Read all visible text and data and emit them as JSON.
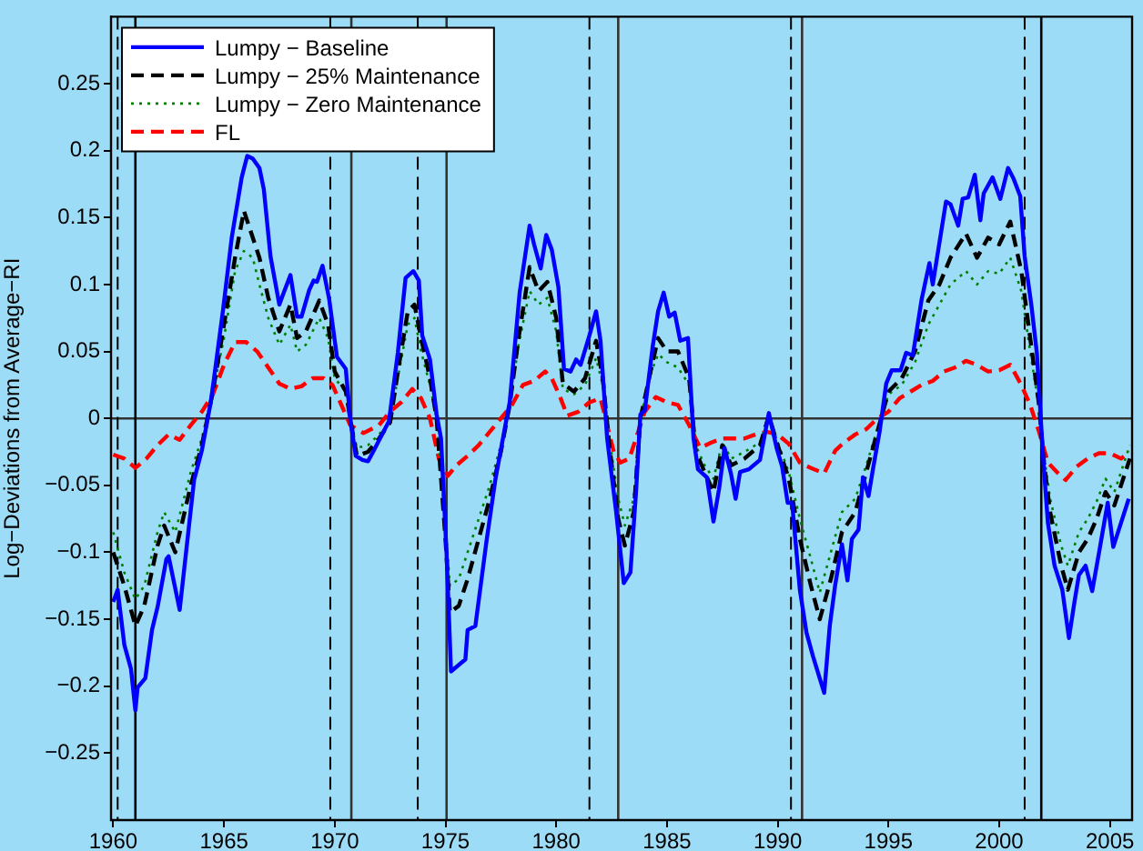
{
  "chart_data": {
    "type": "line",
    "ylabel": "Log−Deviations from Average−RI",
    "xlim": [
      1959.9,
      2006
    ],
    "ylim": [
      -0.3,
      0.3
    ],
    "xticks": [
      1960,
      1965,
      1970,
      1975,
      1980,
      1985,
      1990,
      1995,
      2000,
      2005
    ],
    "yticks": [
      {
        "value": -0.25,
        "label": "−0.25"
      },
      {
        "value": -0.2,
        "label": "−0.2"
      },
      {
        "value": -0.15,
        "label": "−0.15"
      },
      {
        "value": -0.1,
        "label": "−0.1"
      },
      {
        "value": -0.05,
        "label": "−0.05"
      },
      0,
      0.05,
      0.1,
      0.15,
      0.2,
      0.25
    ],
    "grid": false,
    "legend": "top left",
    "marker": "none",
    "ref_lines": [
      {
        "axis": "y",
        "value": 0,
        "color": "#333333",
        "line_style": "solid"
      },
      {
        "axis": "x",
        "value": 1960.2,
        "color": "#000000",
        "line_style": "dashed"
      },
      {
        "axis": "x",
        "value": 1961.0,
        "color": "#000000",
        "line_style": "solid"
      },
      {
        "axis": "x",
        "value": 1969.8,
        "color": "#000000",
        "line_style": "dashed"
      },
      {
        "axis": "x",
        "value": 1970.75,
        "color": "#333333",
        "line_style": "solid"
      },
      {
        "axis": "x",
        "value": 1973.75,
        "color": "#000000",
        "line_style": "dashed"
      },
      {
        "axis": "x",
        "value": 1975.05,
        "color": "#333333",
        "line_style": "solid"
      },
      {
        "axis": "x",
        "value": 1981.5,
        "color": "#000000",
        "line_style": "dashed"
      },
      {
        "axis": "x",
        "value": 1982.8,
        "color": "#333333",
        "line_style": "solid"
      },
      {
        "axis": "x",
        "value": 1990.6,
        "color": "#000000",
        "line_style": "dashed"
      },
      {
        "axis": "x",
        "value": 1991.1,
        "color": "#333333",
        "line_style": "solid"
      },
      {
        "axis": "x",
        "value": 2001.15,
        "color": "#000000",
        "line_style": "dashed"
      },
      {
        "axis": "x",
        "value": 2001.9,
        "color": "#000000",
        "line_style": "solid"
      }
    ],
    "series": [
      {
        "name": "Lumpy − Baseline",
        "color": "#0000ff",
        "line_style": "solid",
        "x": [
          1960.0,
          1960.2,
          1960.5,
          1960.8,
          1961.0,
          1961.1,
          1961.45,
          1961.75,
          1962.0,
          1962.4,
          1962.5,
          1963.0,
          1963.65,
          1964.0,
          1964.4,
          1964.55,
          1964.95,
          1965.35,
          1965.8,
          1966.05,
          1966.3,
          1966.6,
          1966.8,
          1967.1,
          1967.5,
          1967.7,
          1968.0,
          1968.3,
          1968.5,
          1968.85,
          1969.05,
          1969.2,
          1969.45,
          1969.75,
          1970.1,
          1970.5,
          1970.7,
          1970.95,
          1971.25,
          1971.5,
          1971.7,
          1972.45,
          1972.85,
          1973.2,
          1973.55,
          1973.8,
          1973.95,
          1974.3,
          1974.6,
          1974.8,
          1975.05,
          1975.25,
          1975.9,
          1976.0,
          1976.35,
          1976.85,
          1977.25,
          1977.65,
          1977.9,
          1978.35,
          1978.8,
          1979.0,
          1979.3,
          1979.55,
          1979.8,
          1980.1,
          1980.35,
          1980.65,
          1980.9,
          1981.1,
          1981.5,
          1981.8,
          1982.0,
          1982.3,
          1982.7,
          1983.05,
          1983.35,
          1983.6,
          1983.8,
          1984.0,
          1984.35,
          1984.6,
          1984.85,
          1985.1,
          1985.35,
          1985.6,
          1985.95,
          1986.2,
          1986.4,
          1986.6,
          1986.8,
          1987.1,
          1987.35,
          1987.6,
          1987.9,
          1988.1,
          1988.3,
          1988.7,
          1989.2,
          1989.6,
          1989.95,
          1990.2,
          1990.45,
          1990.65,
          1991.0,
          1991.3,
          1991.6,
          1992.1,
          1992.35,
          1992.6,
          1992.9,
          1993.15,
          1993.35,
          1993.65,
          1993.85,
          1994.1,
          1994.3,
          1994.6,
          1994.9,
          1995.15,
          1995.55,
          1995.8,
          1996.1,
          1996.5,
          1996.85,
          1997.0,
          1997.6,
          1997.8,
          1998.15,
          1998.35,
          1998.6,
          1998.9,
          1999.15,
          1999.3,
          1999.7,
          2000.05,
          2000.4,
          2000.65,
          2000.95,
          2001.15,
          2001.45,
          2001.7,
          2001.9,
          2002.0,
          2002.2,
          2002.5,
          2002.85,
          2003.15,
          2003.4,
          2003.6,
          2003.9,
          2004.2,
          2004.5,
          2004.9,
          2005.15,
          2005.5,
          2005.85
        ],
        "values": [
          -0.137,
          -0.128,
          -0.169,
          -0.187,
          -0.218,
          -0.201,
          -0.194,
          -0.158,
          -0.141,
          -0.105,
          -0.103,
          -0.143,
          -0.046,
          -0.024,
          0.012,
          0.03,
          0.08,
          0.135,
          0.18,
          0.196,
          0.194,
          0.187,
          0.171,
          0.121,
          0.085,
          0.094,
          0.107,
          0.076,
          0.076,
          0.096,
          0.103,
          0.102,
          0.114,
          0.089,
          0.046,
          0.037,
          -0.001,
          -0.028,
          -0.031,
          -0.032,
          -0.026,
          -0.002,
          0.049,
          0.105,
          0.11,
          0.103,
          0.062,
          0.044,
          0.003,
          -0.015,
          -0.101,
          -0.189,
          -0.18,
          -0.158,
          -0.155,
          -0.092,
          -0.046,
          -0.01,
          0.012,
          0.094,
          0.144,
          0.13,
          0.112,
          0.137,
          0.126,
          0.098,
          0.037,
          0.035,
          0.044,
          0.04,
          0.062,
          0.08,
          0.058,
          -0.015,
          -0.069,
          -0.123,
          -0.115,
          -0.056,
          0.003,
          0.006,
          0.053,
          0.08,
          0.094,
          0.076,
          0.079,
          0.058,
          0.06,
          -0.015,
          -0.038,
          -0.041,
          -0.044,
          -0.077,
          -0.053,
          -0.022,
          -0.042,
          -0.06,
          -0.04,
          -0.038,
          -0.031,
          0.004,
          -0.022,
          -0.036,
          -0.063,
          -0.063,
          -0.128,
          -0.16,
          -0.178,
          -0.205,
          -0.155,
          -0.124,
          -0.094,
          -0.121,
          -0.09,
          -0.083,
          -0.044,
          -0.058,
          -0.038,
          -0.01,
          0.026,
          0.036,
          0.036,
          0.049,
          0.047,
          0.089,
          0.116,
          0.1,
          0.162,
          0.16,
          0.144,
          0.164,
          0.165,
          0.182,
          0.148,
          0.168,
          0.18,
          0.164,
          0.187,
          0.179,
          0.166,
          0.121,
          0.085,
          0.049,
          -0.006,
          -0.033,
          -0.078,
          -0.11,
          -0.128,
          -0.164,
          -0.137,
          -0.117,
          -0.11,
          -0.129,
          -0.101,
          -0.063,
          -0.096,
          -0.078,
          -0.06
        ]
      },
      {
        "name": "Lumpy − 25% Maintenance",
        "color": "#000000",
        "line_style": "dashed",
        "x": [
          1960.0,
          1960.5,
          1961.0,
          1961.4,
          1962.0,
          1962.3,
          1962.8,
          1963.5,
          1964.0,
          1964.5,
          1965.0,
          1965.5,
          1965.9,
          1966.2,
          1966.6,
          1967.0,
          1967.5,
          1968.0,
          1968.3,
          1968.7,
          1969.3,
          1969.7,
          1970.0,
          1970.5,
          1970.75,
          1971.0,
          1971.5,
          1972.0,
          1972.5,
          1972.9,
          1973.3,
          1973.6,
          1973.9,
          1974.3,
          1974.6,
          1975.0,
          1975.2,
          1975.6,
          1976.0,
          1976.5,
          1977.0,
          1977.5,
          1977.9,
          1978.3,
          1978.8,
          1979.2,
          1979.6,
          1980.0,
          1980.3,
          1980.8,
          1981.3,
          1981.8,
          1982.1,
          1982.4,
          1982.8,
          1983.1,
          1983.5,
          1983.8,
          1984.3,
          1984.6,
          1985.0,
          1985.5,
          1986.0,
          1986.3,
          1986.7,
          1987.1,
          1987.5,
          1987.9,
          1988.5,
          1989.2,
          1989.6,
          1990.0,
          1990.5,
          1991.0,
          1991.5,
          1991.9,
          1992.4,
          1992.9,
          1993.5,
          1994.0,
          1994.5,
          1995.0,
          1995.6,
          1996.2,
          1996.8,
          1997.3,
          1997.8,
          1998.5,
          1999.0,
          1999.5,
          2000.0,
          2000.5,
          2001.0,
          2001.4,
          2001.8,
          2002.0,
          2002.3,
          2002.8,
          2003.1,
          2003.6,
          2004.0,
          2004.4,
          2004.8,
          2005.2,
          2005.9
        ],
        "values": [
          -0.1,
          -0.125,
          -0.155,
          -0.14,
          -0.095,
          -0.08,
          -0.1,
          -0.05,
          -0.02,
          0.02,
          0.07,
          0.12,
          0.155,
          0.14,
          0.12,
          0.09,
          0.065,
          0.085,
          0.06,
          0.065,
          0.088,
          0.07,
          0.035,
          0.02,
          -0.005,
          -0.028,
          -0.025,
          -0.015,
          -0.003,
          0.04,
          0.08,
          0.085,
          0.06,
          0.03,
          0.0,
          -0.09,
          -0.145,
          -0.14,
          -0.12,
          -0.09,
          -0.06,
          -0.025,
          0.01,
          0.06,
          0.113,
          0.095,
          0.102,
          0.075,
          0.026,
          0.02,
          0.03,
          0.058,
          0.03,
          -0.02,
          -0.075,
          -0.095,
          -0.07,
          0.0,
          0.038,
          0.06,
          0.05,
          0.05,
          0.03,
          -0.025,
          -0.04,
          -0.055,
          -0.02,
          -0.035,
          -0.03,
          -0.02,
          0.002,
          -0.02,
          -0.045,
          -0.09,
          -0.125,
          -0.15,
          -0.12,
          -0.085,
          -0.07,
          -0.04,
          -0.01,
          0.02,
          0.03,
          0.05,
          0.088,
          0.1,
          0.12,
          0.138,
          0.12,
          0.135,
          0.13,
          0.147,
          0.11,
          0.06,
          0.01,
          -0.03,
          -0.07,
          -0.11,
          -0.128,
          -0.1,
          -0.09,
          -0.075,
          -0.055,
          -0.065,
          -0.03
        ]
      },
      {
        "name": "Lumpy − Zero Maintenance",
        "color": "#008000",
        "line_style": "dotted",
        "x": [
          1960.0,
          1960.5,
          1961.0,
          1961.4,
          1962.0,
          1962.3,
          1962.8,
          1963.5,
          1964.0,
          1964.5,
          1965.0,
          1965.5,
          1965.9,
          1966.3,
          1966.6,
          1967.0,
          1967.5,
          1968.0,
          1968.3,
          1968.7,
          1969.3,
          1969.7,
          1970.0,
          1970.5,
          1970.75,
          1971.0,
          1971.5,
          1972.0,
          1972.5,
          1972.9,
          1973.3,
          1973.6,
          1973.9,
          1974.3,
          1974.6,
          1975.0,
          1975.2,
          1975.6,
          1976.0,
          1976.5,
          1977.0,
          1977.5,
          1977.9,
          1978.3,
          1978.8,
          1979.2,
          1979.6,
          1980.0,
          1980.3,
          1980.8,
          1981.3,
          1981.8,
          1982.1,
          1982.4,
          1982.8,
          1983.1,
          1983.5,
          1983.8,
          1984.3,
          1984.6,
          1985.0,
          1985.5,
          1986.0,
          1986.3,
          1986.7,
          1987.1,
          1987.5,
          1987.9,
          1988.5,
          1989.2,
          1989.6,
          1990.0,
          1990.5,
          1991.0,
          1991.5,
          1991.9,
          1992.4,
          1992.9,
          1993.5,
          1994.0,
          1994.5,
          1995.0,
          1995.6,
          1996.2,
          1996.8,
          1997.3,
          1997.8,
          1998.5,
          1999.0,
          1999.5,
          2000.0,
          2000.5,
          2001.0,
          2001.4,
          2001.8,
          2002.0,
          2002.3,
          2002.8,
          2003.1,
          2003.6,
          2004.0,
          2004.4,
          2004.8,
          2005.2,
          2005.9
        ],
        "values": [
          -0.085,
          -0.115,
          -0.135,
          -0.125,
          -0.085,
          -0.07,
          -0.085,
          -0.04,
          -0.015,
          0.02,
          0.06,
          0.11,
          0.125,
          0.12,
          0.1,
          0.075,
          0.055,
          0.07,
          0.05,
          0.055,
          0.075,
          0.06,
          0.03,
          0.02,
          -0.005,
          -0.022,
          -0.02,
          -0.012,
          -0.002,
          0.035,
          0.07,
          0.075,
          0.05,
          0.025,
          0.0,
          -0.08,
          -0.125,
          -0.12,
          -0.1,
          -0.075,
          -0.05,
          -0.02,
          0.01,
          0.055,
          0.095,
          0.085,
          0.09,
          0.065,
          0.022,
          0.018,
          0.025,
          0.045,
          0.025,
          -0.015,
          -0.06,
          -0.08,
          -0.06,
          0.0,
          0.035,
          0.048,
          0.042,
          0.038,
          0.025,
          -0.02,
          -0.035,
          -0.045,
          -0.018,
          -0.03,
          -0.025,
          -0.018,
          0.002,
          -0.018,
          -0.04,
          -0.075,
          -0.105,
          -0.13,
          -0.1,
          -0.07,
          -0.06,
          -0.035,
          -0.008,
          0.018,
          0.025,
          0.042,
          0.07,
          0.085,
          0.1,
          0.11,
          0.1,
          0.11,
          0.108,
          0.12,
          0.095,
          0.05,
          0.008,
          -0.025,
          -0.06,
          -0.095,
          -0.11,
          -0.085,
          -0.075,
          -0.062,
          -0.045,
          -0.055,
          -0.02
        ]
      },
      {
        "name": "FL",
        "color": "#ff0000",
        "line_style": "dashed",
        "x": [
          1960.0,
          1960.5,
          1961.0,
          1961.5,
          1962.0,
          1962.5,
          1963.0,
          1963.5,
          1964.0,
          1964.5,
          1965.0,
          1965.5,
          1966.0,
          1966.5,
          1967.0,
          1967.5,
          1968.0,
          1968.5,
          1969.0,
          1969.5,
          1969.9,
          1970.3,
          1970.7,
          1971.3,
          1972.0,
          1972.5,
          1973.0,
          1973.5,
          1973.9,
          1974.3,
          1974.7,
          1975.1,
          1975.5,
          1976.0,
          1976.5,
          1977.0,
          1977.5,
          1978.0,
          1978.5,
          1979.0,
          1979.5,
          1979.8,
          1980.2,
          1980.5,
          1981.0,
          1981.5,
          1982.0,
          1982.3,
          1982.6,
          1982.9,
          1983.3,
          1983.7,
          1984.0,
          1984.5,
          1985.0,
          1985.5,
          1986.0,
          1986.5,
          1987.0,
          1987.5,
          1988.0,
          1988.5,
          1989.0,
          1989.5,
          1990.0,
          1990.5,
          1991.0,
          1991.5,
          1992.1,
          1992.6,
          1993.0,
          1993.5,
          1994.0,
          1994.5,
          1995.0,
          1995.5,
          1996.0,
          1996.5,
          1997.0,
          1997.5,
          1998.0,
          1998.5,
          1999.0,
          1999.5,
          2000.0,
          2000.5,
          2001.0,
          2001.4,
          2001.8,
          2002.2,
          2002.6,
          2003.0,
          2003.5,
          2004.0,
          2004.5,
          2005.0,
          2005.5,
          2005.9
        ],
        "values": [
          -0.027,
          -0.03,
          -0.037,
          -0.03,
          -0.02,
          -0.012,
          -0.016,
          -0.005,
          0.005,
          0.018,
          0.04,
          0.057,
          0.057,
          0.05,
          0.038,
          0.026,
          0.022,
          0.024,
          0.03,
          0.03,
          0.025,
          0.01,
          -0.005,
          -0.011,
          -0.005,
          0.005,
          0.012,
          0.022,
          0.015,
          0.0,
          -0.03,
          -0.043,
          -0.035,
          -0.028,
          -0.02,
          -0.01,
          0.0,
          0.01,
          0.025,
          0.028,
          0.035,
          0.03,
          0.015,
          0.002,
          0.005,
          0.012,
          0.015,
          -0.005,
          -0.025,
          -0.033,
          -0.03,
          -0.01,
          0.005,
          0.016,
          0.012,
          0.01,
          -0.005,
          -0.022,
          -0.018,
          -0.015,
          -0.015,
          -0.015,
          -0.012,
          -0.01,
          -0.012,
          -0.019,
          -0.033,
          -0.037,
          -0.041,
          -0.024,
          -0.018,
          -0.012,
          -0.008,
          0.0,
          0.005,
          0.015,
          0.02,
          0.025,
          0.028,
          0.035,
          0.038,
          0.043,
          0.04,
          0.035,
          0.036,
          0.04,
          0.025,
          0.01,
          -0.01,
          -0.033,
          -0.04,
          -0.046,
          -0.036,
          -0.03,
          -0.026,
          -0.026,
          -0.03,
          -0.025
        ]
      }
    ]
  }
}
